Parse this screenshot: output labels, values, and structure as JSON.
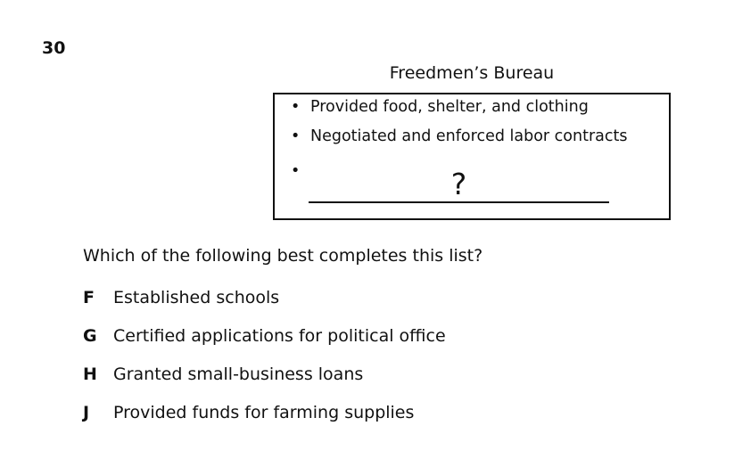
{
  "question_number": "30",
  "box": {
    "title": "Freedmen’s Bureau",
    "bullet_glyph": "•",
    "items": [
      "Provided food, shelter, and clothing",
      "Negotiated and enforced labor contracts"
    ],
    "blank_symbol": "?"
  },
  "question_text": "Which of the following best completes this list?",
  "options": [
    {
      "letter": "F",
      "text": "Established schools"
    },
    {
      "letter": "G",
      "text": "Certified applications for political office"
    },
    {
      "letter": "H",
      "text": "Granted small-business loans"
    },
    {
      "letter": "J",
      "text": "Provided funds for farming supplies"
    }
  ]
}
